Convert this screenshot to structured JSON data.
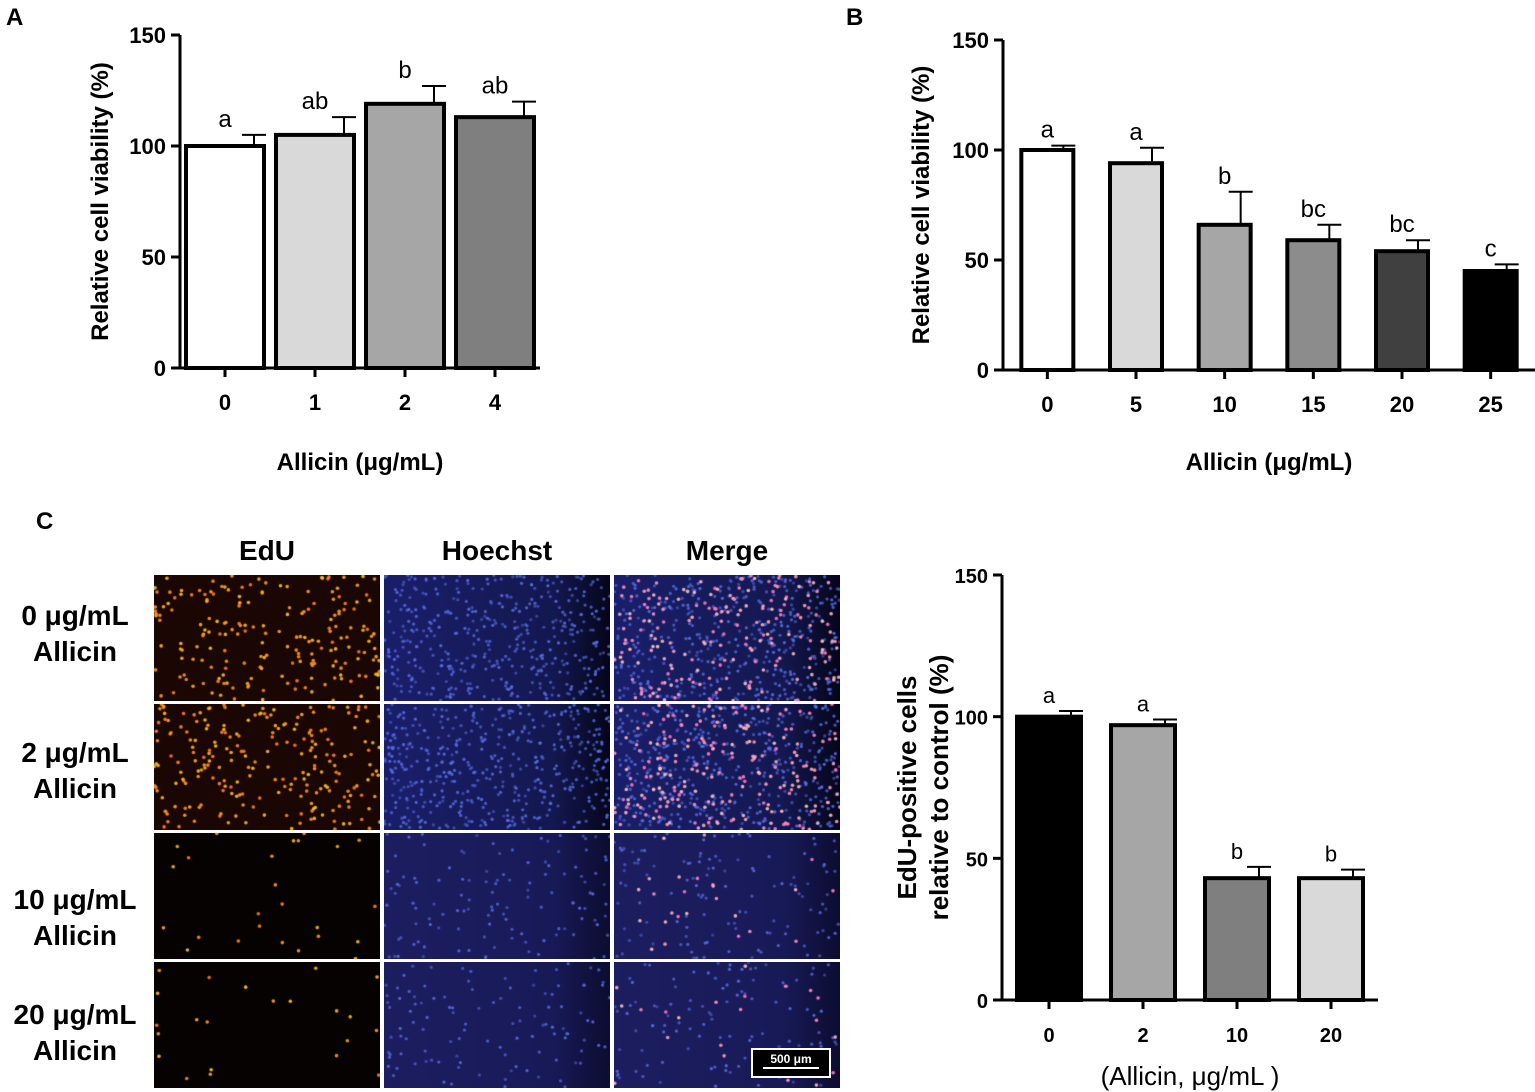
{
  "panels": {
    "A": "A",
    "B": "B",
    "C": "C"
  },
  "chart_data": [
    {
      "id": "A",
      "type": "bar",
      "categories": [
        "0",
        "1",
        "2",
        "4"
      ],
      "values": [
        100,
        105,
        119,
        113
      ],
      "errors": [
        5,
        8,
        8,
        7
      ],
      "significance": [
        "a",
        "ab",
        "b",
        "ab"
      ],
      "fills": [
        "#ffffff",
        "#d9d9d9",
        "#a6a6a6",
        "#7f7f7f"
      ],
      "ylabel": "Relative cell viability (%)",
      "xlabel": "Allicin (μg/mL)",
      "ylim": [
        0,
        150
      ],
      "yticks": [
        "0",
        "50",
        "100",
        "150"
      ],
      "grid": false
    },
    {
      "id": "B",
      "type": "bar",
      "categories": [
        "0",
        "5",
        "10",
        "15",
        "20",
        "25"
      ],
      "values": [
        100,
        94,
        66,
        59,
        54,
        45
      ],
      "errors": [
        2,
        7,
        15,
        7,
        5,
        3
      ],
      "significance": [
        "a",
        "a",
        "b",
        "bc",
        "bc",
        "c"
      ],
      "fills": [
        "#ffffff",
        "#d9d9d9",
        "#a6a6a6",
        "#8c8c8c",
        "#404040",
        "#000000"
      ],
      "ylabel": "Relative cell viability (%)",
      "xlabel": "Allicin (μg/mL)",
      "ylim": [
        0,
        150
      ],
      "yticks": [
        "0",
        "50",
        "100",
        "150"
      ],
      "grid": false
    },
    {
      "id": "C",
      "type": "bar",
      "categories": [
        "0",
        "2",
        "10",
        "20"
      ],
      "values": [
        100,
        97,
        43,
        43
      ],
      "errors": [
        2,
        2,
        4,
        3
      ],
      "significance": [
        "a",
        "a",
        "b",
        "b"
      ],
      "fills": [
        "#000000",
        "#a6a6a6",
        "#7f7f7f",
        "#d9d9d9"
      ],
      "ylabel_lines": [
        "EdU-positive cells",
        "relative to control (%)"
      ],
      "xlabel": "(Allicin, μg/mL  )",
      "ylim": [
        0,
        150
      ],
      "yticks": [
        "0",
        "50",
        "100",
        "150"
      ],
      "grid": false
    }
  ],
  "microscopy": {
    "columns": [
      "EdU",
      "Hoechst",
      "Merge"
    ],
    "rows": [
      {
        "line1": "0 μg/mL",
        "line2": "Allicin"
      },
      {
        "line1": "2 μg/mL",
        "line2": "Allicin"
      },
      {
        "line1": "10 μg/mL",
        "line2": "Allicin"
      },
      {
        "line1": "20 μg/mL",
        "line2": "Allicin"
      }
    ],
    "scale_bar": "500 μm"
  }
}
